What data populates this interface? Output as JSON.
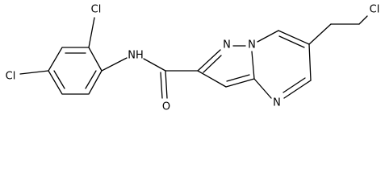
{
  "atoms": {
    "cl_top": "Cl",
    "cl_left": "Cl",
    "nh": "NH",
    "o": "O",
    "n1": "N",
    "n_bridge": "N",
    "n4": "N",
    "cl_right": "Cl"
  }
}
